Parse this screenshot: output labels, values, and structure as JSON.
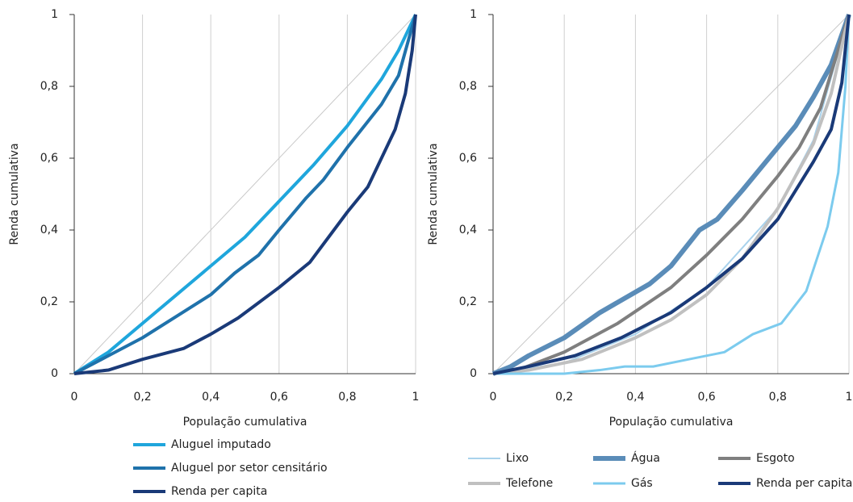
{
  "chart_data": [
    {
      "type": "line",
      "xlabel": "População cumulativa",
      "ylabel": "Renda cumulativa",
      "xlim": [
        0,
        1
      ],
      "ylim": [
        0,
        1
      ],
      "grid": true,
      "xticks": [
        0,
        {
          "value": 0.2,
          "label": "0,2"
        },
        {
          "value": 0.4,
          "label": "0,4"
        },
        {
          "value": 0.6,
          "label": "0,6"
        },
        {
          "value": 0.8,
          "label": "0,8"
        },
        1
      ],
      "yticks": [
        0,
        {
          "value": 0.2,
          "label": "0,2"
        },
        {
          "value": 0.4,
          "label": "0,4"
        },
        {
          "value": 0.6,
          "label": "0,6"
        },
        {
          "value": 0.8,
          "label": "0,8"
        },
        1
      ],
      "series": [
        {
          "name": "Aluguel imputado",
          "color": "#1fa6dc",
          "line_width": 4,
          "x": [
            0,
            0.1,
            0.25,
            0.4,
            0.5,
            0.6,
            0.7,
            0.8,
            0.9,
            0.95,
            1
          ],
          "values": [
            0,
            0.06,
            0.18,
            0.3,
            0.38,
            0.48,
            0.58,
            0.69,
            0.82,
            0.9,
            1
          ]
        },
        {
          "name": "Aluguel por setor censitário",
          "color": "#1f72ab",
          "line_width": 4,
          "x": [
            0,
            0.1,
            0.2,
            0.3,
            0.4,
            0.47,
            0.54,
            0.6,
            0.68,
            0.73,
            0.8,
            0.9,
            0.95,
            1
          ],
          "values": [
            0,
            0.05,
            0.1,
            0.16,
            0.22,
            0.28,
            0.33,
            0.4,
            0.49,
            0.54,
            0.63,
            0.75,
            0.83,
            1
          ]
        },
        {
          "name": "Renda per capita",
          "color": "#1a3a78",
          "line_width": 4,
          "x": [
            0,
            0.1,
            0.2,
            0.32,
            0.4,
            0.48,
            0.6,
            0.69,
            0.8,
            0.86,
            0.94,
            0.97,
            0.99,
            1
          ],
          "values": [
            0,
            0.01,
            0.04,
            0.07,
            0.11,
            0.155,
            0.24,
            0.31,
            0.45,
            0.52,
            0.68,
            0.78,
            0.9,
            1
          ]
        }
      ]
    },
    {
      "type": "line",
      "xlabel": "População cumulativa",
      "ylabel": "Renda cumulativa",
      "xlim": [
        0,
        1
      ],
      "ylim": [
        0,
        1
      ],
      "grid": true,
      "xticks": [
        0,
        {
          "value": 0.2,
          "label": "0,2"
        },
        {
          "value": 0.4,
          "label": "0,4"
        },
        {
          "value": 0.6,
          "label": "0,6"
        },
        {
          "value": 0.8,
          "label": "0,8"
        },
        1
      ],
      "yticks": [
        0,
        {
          "value": 0.2,
          "label": "0,2"
        },
        {
          "value": 0.4,
          "label": "0,4"
        },
        {
          "value": 0.6,
          "label": "0,6"
        },
        {
          "value": 0.8,
          "label": "0,8"
        },
        1
      ],
      "series": [
        {
          "name": "Lixo",
          "color": "#a9d2ec",
          "line_width": 2,
          "x": [
            0,
            0.2,
            0.4,
            0.6,
            0.8,
            0.9,
            1
          ],
          "values": [
            0,
            0.03,
            0.11,
            0.24,
            0.46,
            0.65,
            1
          ]
        },
        {
          "name": "Água",
          "color": "#5a8cb8",
          "line_width": 6,
          "x": [
            0,
            0.05,
            0.1,
            0.2,
            0.3,
            0.44,
            0.5,
            0.58,
            0.63,
            0.7,
            0.8,
            0.85,
            0.9,
            0.95,
            1
          ],
          "values": [
            0,
            0.02,
            0.05,
            0.1,
            0.17,
            0.25,
            0.3,
            0.4,
            0.43,
            0.51,
            0.63,
            0.69,
            0.77,
            0.86,
            1
          ]
        },
        {
          "name": "Esgoto",
          "color": "#7f7f7f",
          "line_width": 4,
          "x": [
            0,
            0.07,
            0.2,
            0.35,
            0.5,
            0.6,
            0.7,
            0.8,
            0.86,
            0.92,
            1
          ],
          "values": [
            0,
            0.01,
            0.06,
            0.14,
            0.24,
            0.33,
            0.43,
            0.55,
            0.63,
            0.74,
            1
          ]
        },
        {
          "name": "Telefone",
          "color": "#c0c0c0",
          "line_width": 4,
          "x": [
            0,
            0.1,
            0.25,
            0.4,
            0.5,
            0.6,
            0.7,
            0.8,
            0.9,
            0.95,
            1
          ],
          "values": [
            0,
            0.01,
            0.04,
            0.1,
            0.15,
            0.22,
            0.32,
            0.46,
            0.64,
            0.78,
            1
          ]
        },
        {
          "name": "Gás",
          "color": "#7ccbee",
          "line_width": 3,
          "x": [
            0,
            0.2,
            0.3,
            0.37,
            0.45,
            0.55,
            0.65,
            0.73,
            0.81,
            0.88,
            0.94,
            0.97,
            0.99,
            1
          ],
          "values": [
            0,
            0,
            0.01,
            0.02,
            0.02,
            0.04,
            0.06,
            0.11,
            0.14,
            0.23,
            0.41,
            0.56,
            0.8,
            1
          ]
        },
        {
          "name": "Renda per capita",
          "color": "#1a3a78",
          "line_width": 4,
          "x": [
            0,
            0.1,
            0.23,
            0.36,
            0.5,
            0.6,
            0.7,
            0.8,
            0.9,
            0.95,
            0.98,
            1
          ],
          "values": [
            0,
            0.02,
            0.05,
            0.1,
            0.17,
            0.24,
            0.32,
            0.43,
            0.59,
            0.68,
            0.81,
            1
          ]
        }
      ]
    }
  ]
}
